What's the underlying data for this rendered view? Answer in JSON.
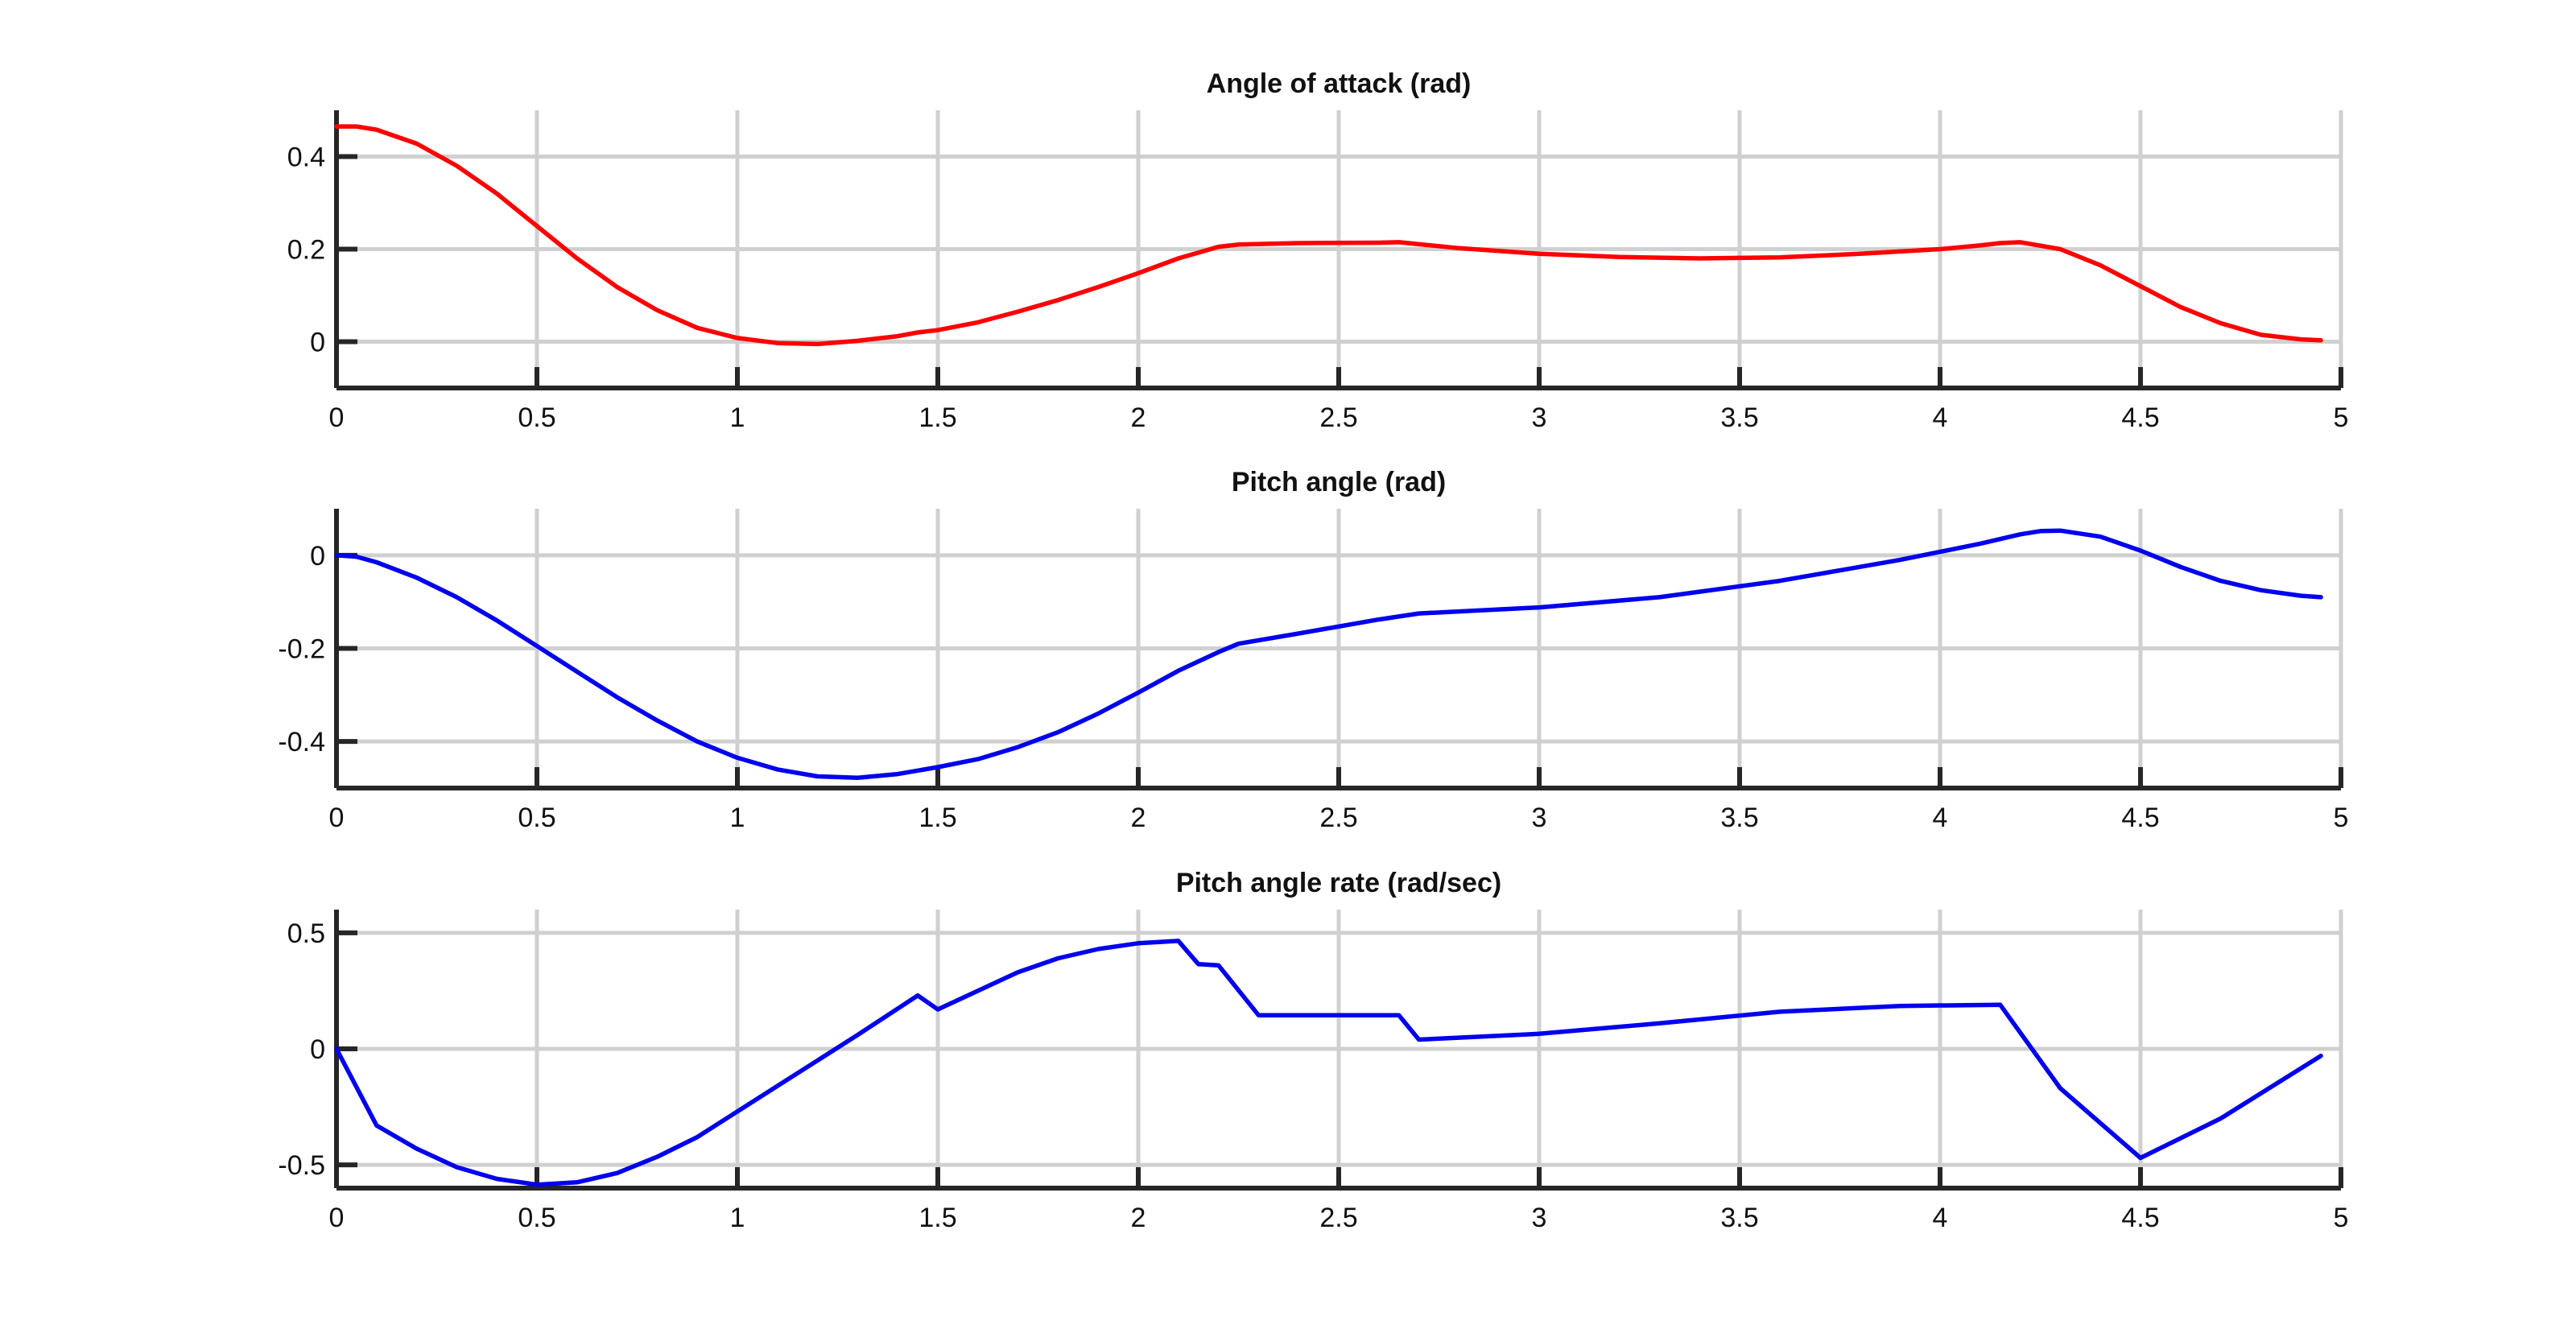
{
  "chart_data": [
    {
      "type": "line",
      "title": "Angle of attack (rad)",
      "xlabel": "",
      "ylabel": "",
      "xlim": [
        0,
        5
      ],
      "ylim": [
        -0.1,
        0.5
      ],
      "grid": true,
      "xticks": [
        0,
        0.5,
        1,
        1.5,
        2,
        2.5,
        3,
        3.5,
        4,
        4.5,
        5
      ],
      "xtick_labels": [
        "0",
        "0.5",
        "1",
        "1.5",
        "2",
        "2.5",
        "3",
        "3.5",
        "4",
        "4.5",
        "5"
      ],
      "yticks": [
        0,
        0.2,
        0.4
      ],
      "ytick_labels": [
        "0",
        "0.2",
        "0.4"
      ],
      "series": [
        {
          "name": "Angle of attack",
          "color": "#ff0000",
          "x": [
            0,
            0.05,
            0.1,
            0.2,
            0.3,
            0.4,
            0.5,
            0.6,
            0.7,
            0.8,
            0.9,
            1.0,
            1.1,
            1.2,
            1.3,
            1.4,
            1.45,
            1.5,
            1.6,
            1.7,
            1.8,
            1.9,
            2.0,
            2.1,
            2.2,
            2.25,
            2.4,
            2.6,
            2.65,
            2.8,
            3.0,
            3.2,
            3.4,
            3.6,
            3.8,
            4.0,
            4.1,
            4.15,
            4.2,
            4.3,
            4.4,
            4.5,
            4.6,
            4.7,
            4.8,
            4.9,
            4.95
          ],
          "y": [
            0.465,
            0.465,
            0.458,
            0.428,
            0.38,
            0.32,
            0.25,
            0.18,
            0.118,
            0.068,
            0.03,
            0.008,
            -0.003,
            -0.005,
            0.002,
            0.012,
            0.02,
            0.025,
            0.042,
            0.065,
            0.09,
            0.118,
            0.148,
            0.18,
            0.205,
            0.21,
            0.213,
            0.214,
            0.215,
            0.202,
            0.19,
            0.183,
            0.18,
            0.182,
            0.19,
            0.2,
            0.208,
            0.213,
            0.215,
            0.2,
            0.165,
            0.12,
            0.075,
            0.04,
            0.015,
            0.005,
            0.003
          ]
        }
      ]
    },
    {
      "type": "line",
      "title": "Pitch angle (rad)",
      "xlabel": "",
      "ylabel": "",
      "xlim": [
        0,
        5
      ],
      "ylim": [
        -0.5,
        0.1
      ],
      "grid": true,
      "xticks": [
        0,
        0.5,
        1,
        1.5,
        2,
        2.5,
        3,
        3.5,
        4,
        4.5,
        5
      ],
      "xtick_labels": [
        "0",
        "0.5",
        "1",
        "1.5",
        "2",
        "2.5",
        "3",
        "3.5",
        "4",
        "4.5",
        "5"
      ],
      "yticks": [
        -0.4,
        -0.2,
        0
      ],
      "ytick_labels": [
        "-0.4",
        "-0.2",
        "0"
      ],
      "series": [
        {
          "name": "Pitch angle",
          "color": "#0000ee",
          "x": [
            0,
            0.05,
            0.1,
            0.2,
            0.3,
            0.4,
            0.5,
            0.6,
            0.7,
            0.8,
            0.9,
            1.0,
            1.1,
            1.2,
            1.3,
            1.4,
            1.5,
            1.6,
            1.7,
            1.8,
            1.9,
            2.0,
            2.1,
            2.2,
            2.25,
            2.4,
            2.6,
            2.7,
            3.0,
            3.3,
            3.6,
            3.9,
            4.1,
            4.2,
            4.25,
            4.3,
            4.4,
            4.5,
            4.6,
            4.7,
            4.8,
            4.9,
            4.95
          ],
          "y": [
            0,
            -0.003,
            -0.015,
            -0.048,
            -0.09,
            -0.14,
            -0.195,
            -0.25,
            -0.305,
            -0.355,
            -0.4,
            -0.435,
            -0.46,
            -0.475,
            -0.478,
            -0.47,
            -0.455,
            -0.438,
            -0.412,
            -0.38,
            -0.34,
            -0.295,
            -0.248,
            -0.208,
            -0.19,
            -0.168,
            -0.138,
            -0.125,
            -0.112,
            -0.09,
            -0.055,
            -0.01,
            0.025,
            0.045,
            0.052,
            0.053,
            0.04,
            0.01,
            -0.025,
            -0.055,
            -0.075,
            -0.087,
            -0.09
          ]
        }
      ]
    },
    {
      "type": "line",
      "title": "Pitch angle rate (rad/sec)",
      "xlabel": "",
      "ylabel": "",
      "xlim": [
        0,
        5
      ],
      "ylim": [
        -0.6,
        0.6
      ],
      "grid": true,
      "xticks": [
        0,
        0.5,
        1,
        1.5,
        2,
        2.5,
        3,
        3.5,
        4,
        4.5,
        5
      ],
      "xtick_labels": [
        "0",
        "0.5",
        "1",
        "1.5",
        "2",
        "2.5",
        "3",
        "3.5",
        "4",
        "4.5",
        "5"
      ],
      "yticks": [
        -0.5,
        0,
        0.5
      ],
      "ytick_labels": [
        "-0.5",
        "0",
        "0.5"
      ],
      "series": [
        {
          "name": "Pitch angle rate",
          "color": "#0000ee",
          "x": [
            0,
            0.1,
            0.2,
            0.3,
            0.4,
            0.5,
            0.6,
            0.7,
            0.8,
            0.9,
            1.0,
            1.1,
            1.2,
            1.3,
            1.45,
            1.5,
            1.6,
            1.7,
            1.8,
            1.9,
            2.0,
            2.1,
            2.15,
            2.2,
            2.3,
            2.5,
            2.65,
            2.7,
            3.0,
            3.3,
            3.6,
            3.9,
            4.15,
            4.3,
            4.5,
            4.7,
            4.95
          ],
          "y": [
            0,
            -0.33,
            -0.43,
            -0.51,
            -0.56,
            -0.585,
            -0.575,
            -0.535,
            -0.465,
            -0.38,
            -0.27,
            -0.16,
            -0.05,
            0.06,
            0.23,
            0.17,
            0.25,
            0.33,
            0.39,
            0.43,
            0.455,
            0.465,
            0.365,
            0.36,
            0.145,
            0.145,
            0.145,
            0.04,
            0.065,
            0.11,
            0.16,
            0.185,
            0.19,
            -0.17,
            -0.47,
            -0.3,
            -0.03
          ]
        }
      ]
    }
  ]
}
